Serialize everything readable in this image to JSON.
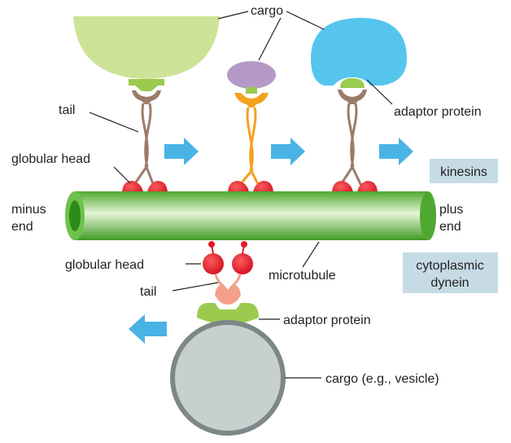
{
  "labels": {
    "cargo_top": "cargo",
    "tail_top": "tail",
    "globular_head_top": "globular head",
    "adaptor_protein_top": "adaptor protein",
    "kinesins": "kinesins",
    "minus_line1": "minus",
    "minus_line2": "end",
    "plus_line1": "plus",
    "plus_line2": "end",
    "globular_head_bottom": "globular head",
    "microtubule": "microtubule",
    "cytoplasmic_line1": "cytoplasmic",
    "cytoplasmic_line2": "dynein",
    "tail_bottom": "tail",
    "adaptor_protein_bottom": "adaptor protein",
    "cargo_vesicle": "cargo (e.g., vesicle)"
  },
  "colors": {
    "microtubule": "#6cc24a",
    "cargo_green": "#cde397",
    "cargo_purple": "#b59ac8",
    "cargo_blue": "#56c5ee",
    "vesicle": "#c8d0cf",
    "adaptor": "#9bcb4e",
    "head_red": "#e01b2a",
    "kinesin_tail": "#9c7b6b",
    "orange": "#f3a11f",
    "dynein_tail": "#f4a08a",
    "arrow": "#4ab3e6",
    "label_box": "#c6dbe6"
  }
}
